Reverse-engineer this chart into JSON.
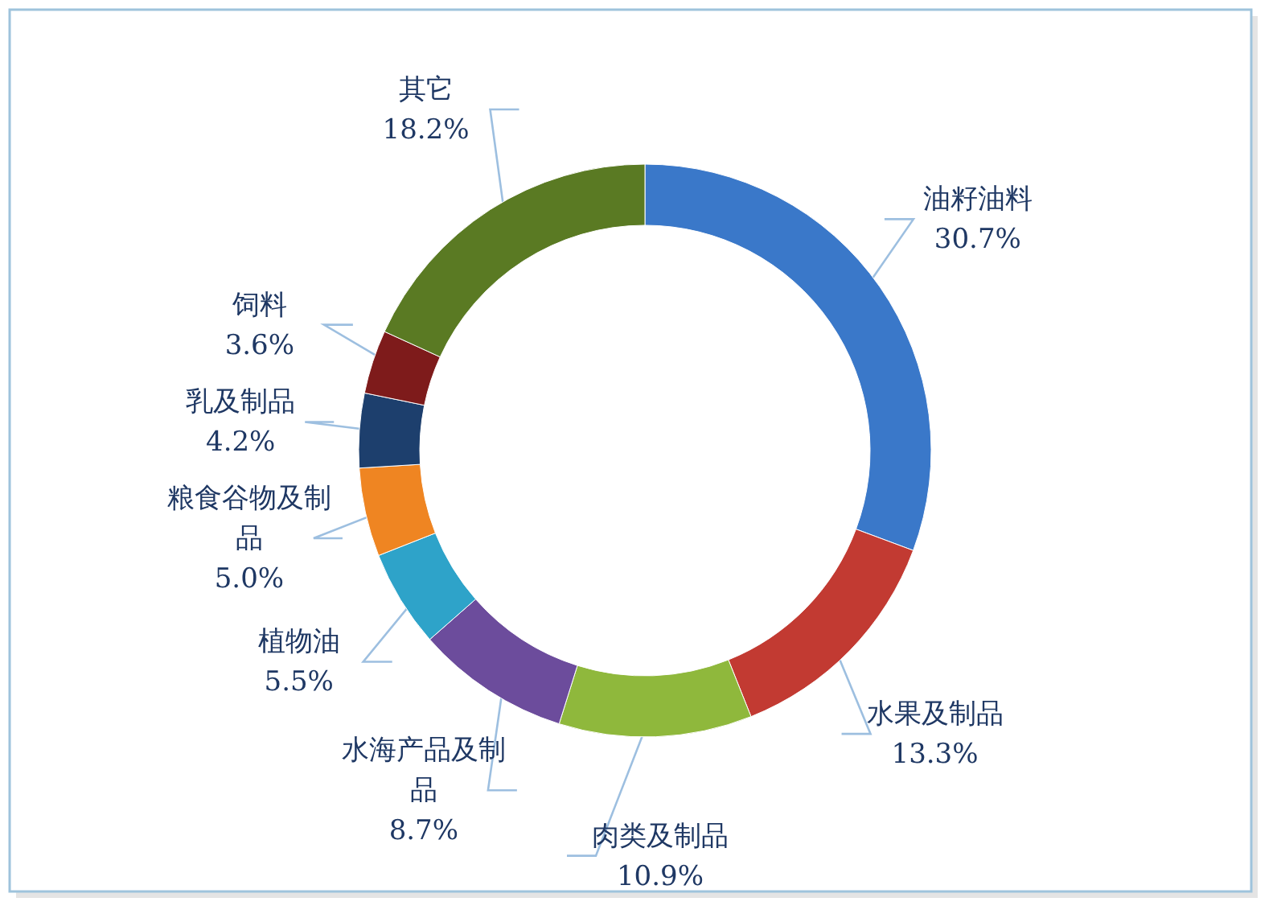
{
  "chart_data": {
    "type": "donut",
    "categories": [
      "油籽油料",
      "水果及制品",
      "肉类及制品",
      "水海产品及制品",
      "植物油",
      "粮食谷物及制品",
      "乳及制品",
      "饲料",
      "其它"
    ],
    "values": [
      30.7,
      13.3,
      10.9,
      8.7,
      5.5,
      5.0,
      4.2,
      3.6,
      18.2
    ],
    "colors": [
      "#3a78c9",
      "#c23a32",
      "#8fb83c",
      "#6c4c9c",
      "#2ea3c9",
      "#ef8522",
      "#1d3f6d",
      "#7e1b1b",
      "#5a7a23"
    ],
    "value_labels": [
      "30.7%",
      "13.3%",
      "10.9%",
      "8.7%",
      "5.5%",
      "5.0%",
      "4.2%",
      "3.6%",
      "18.2%"
    ]
  }
}
